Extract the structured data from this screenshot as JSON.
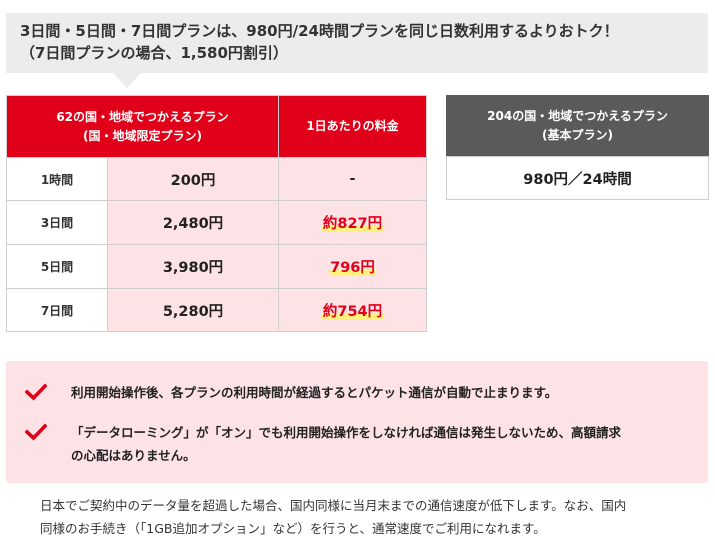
{
  "banner": {
    "line1": "3日間・5日間・7日間プランは、980円/24時間プランを同じ日数利用するよりおトク！",
    "line2": "（7日間プランの場合、1,580円割引）"
  },
  "limited_plan": {
    "header_line1": "62の国・地域でつかえるプラン",
    "header_line2": "(国・地域限定プラン)",
    "daily_header": "1日あたりの料金",
    "rows": [
      {
        "label": "1時間",
        "price": "200円",
        "daily": "-",
        "highlight": false
      },
      {
        "label": "3日間",
        "price": "2,480円",
        "daily": "約827円",
        "highlight": true
      },
      {
        "label": "5日間",
        "price": "3,980円",
        "daily": "796円",
        "highlight": true
      },
      {
        "label": "7日間",
        "price": "5,280円",
        "daily": "約754円",
        "highlight": true
      }
    ]
  },
  "basic_plan": {
    "header_line1": "204の国・地域でつかえるプラン",
    "header_line2": "(基本プラン)",
    "price": "980円／24時間"
  },
  "notes": [
    {
      "line1": "利用開始操作後、各プランの利用時間が経過するとパケット通信が自動で止まります。",
      "line2": ""
    },
    {
      "line1": "「データローミング」が「オン」でも利用開始操作をしなければ通信は発生しないため、高額請求",
      "line2": "の心配はありません。"
    }
  ],
  "footnote": {
    "line1": "日本でご契約中のデータ量を超過した場合、国内同様に当月末までの通信速度が低下します。なお、国内",
    "line2": "同様のお手続き（「1GB追加オプション」など）を行うと、通常速度でご利用になれます。"
  },
  "colors": {
    "accent_red": "#e0001a",
    "pink_bg": "#fde3e6",
    "banner_gray": "#ececec",
    "basic_header_gray": "#5a5a5a",
    "highlight_yellow": "#fff27a"
  },
  "icons": {
    "note_bullet": "checkmark-icon"
  }
}
